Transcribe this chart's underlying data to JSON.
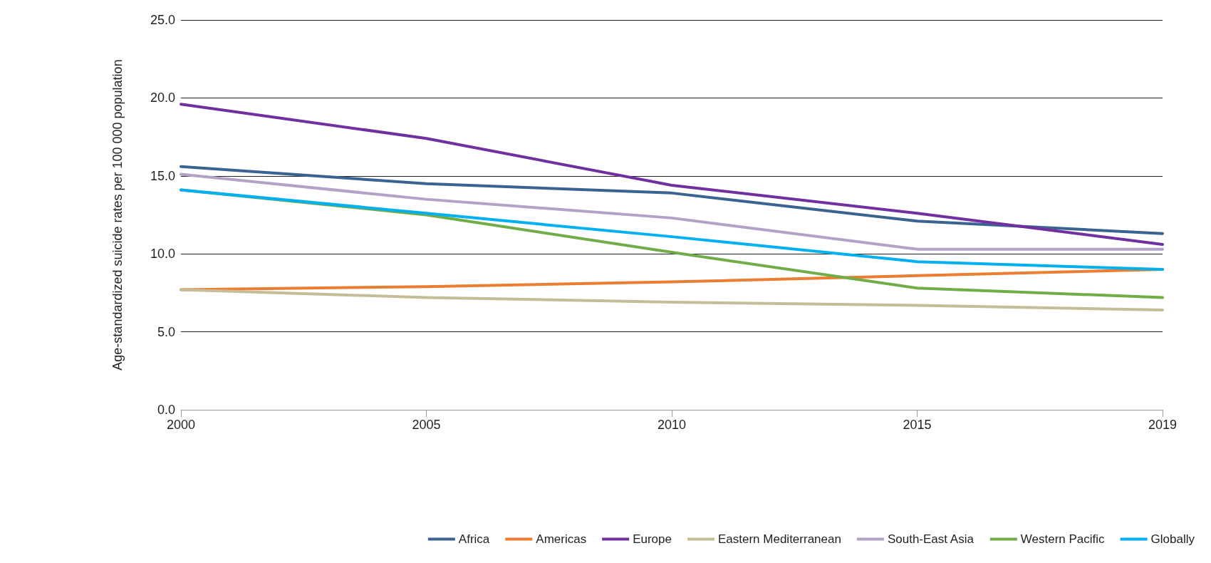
{
  "chart_data": {
    "type": "line",
    "ylabel": "Age-standardized suicide rates per 100 000 population",
    "categories": [
      "2000",
      "2005",
      "2010",
      "2015",
      "2019"
    ],
    "series": [
      {
        "name": "Africa",
        "color": "#3a6391",
        "values": [
          15.6,
          14.5,
          13.9,
          12.1,
          11.3
        ]
      },
      {
        "name": "Americas",
        "color": "#ed7d31",
        "values": [
          7.7,
          7.9,
          8.2,
          8.6,
          9.0
        ]
      },
      {
        "name": "Europe",
        "color": "#7030a0",
        "values": [
          19.6,
          17.4,
          14.4,
          12.6,
          10.6
        ]
      },
      {
        "name": "Eastern Mediterranean",
        "color": "#c4bd97",
        "values": [
          7.7,
          7.2,
          6.9,
          6.7,
          6.4
        ]
      },
      {
        "name": "South-East Asia",
        "color": "#b3a2c7",
        "values": [
          15.1,
          13.5,
          12.3,
          10.3,
          10.3
        ]
      },
      {
        "name": "Western Pacific",
        "color": "#70ad47",
        "values": [
          14.1,
          12.5,
          10.1,
          7.8,
          7.2
        ]
      },
      {
        "name": "Globally",
        "color": "#00b0f0",
        "values": [
          14.1,
          12.6,
          11.1,
          9.5,
          9.0
        ]
      }
    ],
    "ylim": [
      0,
      25
    ],
    "yticks": [
      {
        "value": 0,
        "label": "0.0"
      },
      {
        "value": 5,
        "label": "5.0"
      },
      {
        "value": 10,
        "label": "10.0"
      },
      {
        "value": 15,
        "label": "15.0"
      },
      {
        "value": 20,
        "label": "20.0"
      },
      {
        "value": 25,
        "label": "25.0"
      }
    ],
    "grid": "y",
    "legend": "bottom right",
    "marker": "none",
    "line_style": "solid"
  }
}
